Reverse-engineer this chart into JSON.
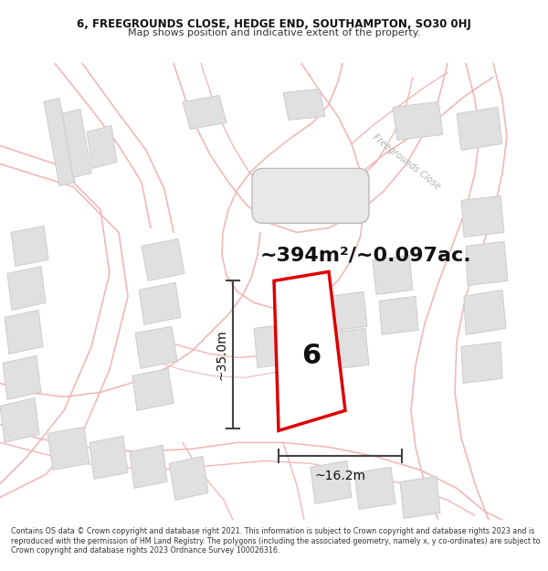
{
  "title": "6, FREEGROUNDS CLOSE, HEDGE END, SOUTHAMPTON, SO30 0HJ",
  "subtitle": "Map shows position and indicative extent of the property.",
  "footer": "Contains OS data © Crown copyright and database right 2021. This information is subject to Crown copyright and database rights 2023 and is reproduced with the permission of HM Land Registry. The polygons (including the associated geometry, namely x, y co-ordinates) are subject to Crown copyright and database rights 2023 Ordnance Survey 100026316.",
  "area_label": "~394m²/~0.097ac.",
  "width_label": "~16.2m",
  "height_label": "~35.0m",
  "street_label": "Freegrounds Close",
  "property_number": "6",
  "bg_color": "#ffffff",
  "road_line_color": "#f0b8b8",
  "building_face_color": "#e0e0e0",
  "building_edge_color": "#cccccc",
  "highlight_color": "#dd0000",
  "highlight_fill": "#ffffff",
  "dimension_color": "#444444",
  "street_label_color": "#b0b0b0",
  "figsize": [
    6.0,
    6.25
  ],
  "dpi": 100
}
